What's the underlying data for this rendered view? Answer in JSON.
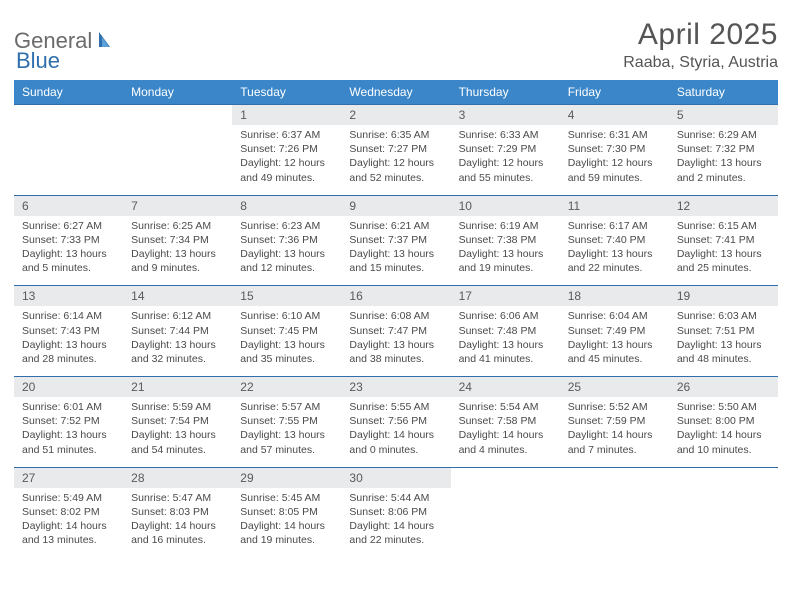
{
  "logo": {
    "text1": "General",
    "text2": "Blue"
  },
  "title": "April 2025",
  "location": "Raaba, Styria, Austria",
  "colors": {
    "header_bg": "#3a86c8",
    "header_text": "#ffffff",
    "daynum_bg": "#e9eaeb",
    "border": "#2f6fad",
    "body_text": "#4a4a4a",
    "title_text": "#555555"
  },
  "day_headers": [
    "Sunday",
    "Monday",
    "Tuesday",
    "Wednesday",
    "Thursday",
    "Friday",
    "Saturday"
  ],
  "weeks": [
    [
      null,
      null,
      {
        "n": "1",
        "sr": "Sunrise: 6:37 AM",
        "ss": "Sunset: 7:26 PM",
        "dl": "Daylight: 12 hours and 49 minutes."
      },
      {
        "n": "2",
        "sr": "Sunrise: 6:35 AM",
        "ss": "Sunset: 7:27 PM",
        "dl": "Daylight: 12 hours and 52 minutes."
      },
      {
        "n": "3",
        "sr": "Sunrise: 6:33 AM",
        "ss": "Sunset: 7:29 PM",
        "dl": "Daylight: 12 hours and 55 minutes."
      },
      {
        "n": "4",
        "sr": "Sunrise: 6:31 AM",
        "ss": "Sunset: 7:30 PM",
        "dl": "Daylight: 12 hours and 59 minutes."
      },
      {
        "n": "5",
        "sr": "Sunrise: 6:29 AM",
        "ss": "Sunset: 7:32 PM",
        "dl": "Daylight: 13 hours and 2 minutes."
      }
    ],
    [
      {
        "n": "6",
        "sr": "Sunrise: 6:27 AM",
        "ss": "Sunset: 7:33 PM",
        "dl": "Daylight: 13 hours and 5 minutes."
      },
      {
        "n": "7",
        "sr": "Sunrise: 6:25 AM",
        "ss": "Sunset: 7:34 PM",
        "dl": "Daylight: 13 hours and 9 minutes."
      },
      {
        "n": "8",
        "sr": "Sunrise: 6:23 AM",
        "ss": "Sunset: 7:36 PM",
        "dl": "Daylight: 13 hours and 12 minutes."
      },
      {
        "n": "9",
        "sr": "Sunrise: 6:21 AM",
        "ss": "Sunset: 7:37 PM",
        "dl": "Daylight: 13 hours and 15 minutes."
      },
      {
        "n": "10",
        "sr": "Sunrise: 6:19 AM",
        "ss": "Sunset: 7:38 PM",
        "dl": "Daylight: 13 hours and 19 minutes."
      },
      {
        "n": "11",
        "sr": "Sunrise: 6:17 AM",
        "ss": "Sunset: 7:40 PM",
        "dl": "Daylight: 13 hours and 22 minutes."
      },
      {
        "n": "12",
        "sr": "Sunrise: 6:15 AM",
        "ss": "Sunset: 7:41 PM",
        "dl": "Daylight: 13 hours and 25 minutes."
      }
    ],
    [
      {
        "n": "13",
        "sr": "Sunrise: 6:14 AM",
        "ss": "Sunset: 7:43 PM",
        "dl": "Daylight: 13 hours and 28 minutes."
      },
      {
        "n": "14",
        "sr": "Sunrise: 6:12 AM",
        "ss": "Sunset: 7:44 PM",
        "dl": "Daylight: 13 hours and 32 minutes."
      },
      {
        "n": "15",
        "sr": "Sunrise: 6:10 AM",
        "ss": "Sunset: 7:45 PM",
        "dl": "Daylight: 13 hours and 35 minutes."
      },
      {
        "n": "16",
        "sr": "Sunrise: 6:08 AM",
        "ss": "Sunset: 7:47 PM",
        "dl": "Daylight: 13 hours and 38 minutes."
      },
      {
        "n": "17",
        "sr": "Sunrise: 6:06 AM",
        "ss": "Sunset: 7:48 PM",
        "dl": "Daylight: 13 hours and 41 minutes."
      },
      {
        "n": "18",
        "sr": "Sunrise: 6:04 AM",
        "ss": "Sunset: 7:49 PM",
        "dl": "Daylight: 13 hours and 45 minutes."
      },
      {
        "n": "19",
        "sr": "Sunrise: 6:03 AM",
        "ss": "Sunset: 7:51 PM",
        "dl": "Daylight: 13 hours and 48 minutes."
      }
    ],
    [
      {
        "n": "20",
        "sr": "Sunrise: 6:01 AM",
        "ss": "Sunset: 7:52 PM",
        "dl": "Daylight: 13 hours and 51 minutes."
      },
      {
        "n": "21",
        "sr": "Sunrise: 5:59 AM",
        "ss": "Sunset: 7:54 PM",
        "dl": "Daylight: 13 hours and 54 minutes."
      },
      {
        "n": "22",
        "sr": "Sunrise: 5:57 AM",
        "ss": "Sunset: 7:55 PM",
        "dl": "Daylight: 13 hours and 57 minutes."
      },
      {
        "n": "23",
        "sr": "Sunrise: 5:55 AM",
        "ss": "Sunset: 7:56 PM",
        "dl": "Daylight: 14 hours and 0 minutes."
      },
      {
        "n": "24",
        "sr": "Sunrise: 5:54 AM",
        "ss": "Sunset: 7:58 PM",
        "dl": "Daylight: 14 hours and 4 minutes."
      },
      {
        "n": "25",
        "sr": "Sunrise: 5:52 AM",
        "ss": "Sunset: 7:59 PM",
        "dl": "Daylight: 14 hours and 7 minutes."
      },
      {
        "n": "26",
        "sr": "Sunrise: 5:50 AM",
        "ss": "Sunset: 8:00 PM",
        "dl": "Daylight: 14 hours and 10 minutes."
      }
    ],
    [
      {
        "n": "27",
        "sr": "Sunrise: 5:49 AM",
        "ss": "Sunset: 8:02 PM",
        "dl": "Daylight: 14 hours and 13 minutes."
      },
      {
        "n": "28",
        "sr": "Sunrise: 5:47 AM",
        "ss": "Sunset: 8:03 PM",
        "dl": "Daylight: 14 hours and 16 minutes."
      },
      {
        "n": "29",
        "sr": "Sunrise: 5:45 AM",
        "ss": "Sunset: 8:05 PM",
        "dl": "Daylight: 14 hours and 19 minutes."
      },
      {
        "n": "30",
        "sr": "Sunrise: 5:44 AM",
        "ss": "Sunset: 8:06 PM",
        "dl": "Daylight: 14 hours and 22 minutes."
      },
      null,
      null,
      null
    ]
  ]
}
